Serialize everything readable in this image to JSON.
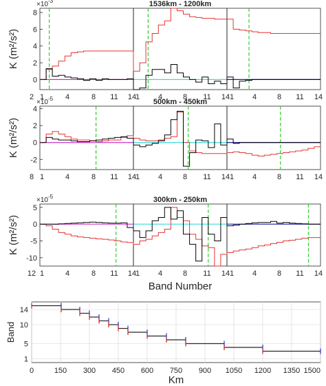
{
  "chart_data": [
    {
      "type": "line",
      "title": "1536km - 1200km",
      "ylabel": "K (m$^2$/s$^2$)",
      "exponent": "×10",
      "exponent_power": "-3",
      "ylim": [
        -1.2,
        8.5
      ],
      "yticks": [
        0,
        2,
        4,
        6,
        8
      ],
      "xtick_labels": [
        "2",
        "1",
        "4",
        "8",
        "11",
        "14",
        "1",
        "4",
        "8",
        "11",
        "14",
        "1",
        "4",
        "8",
        "11",
        "14"
      ],
      "panels": 3,
      "panel_band_max": 14,
      "vlines": [
        1.4,
        2.2,
        3.3
      ],
      "series": [
        {
          "name": "",
          "color": "#e53333",
          "values": [
            0,
            1.2,
            1.6,
            2.2,
            2.8,
            3.2,
            3.3,
            3.4,
            3.4,
            3.4,
            3.4,
            3.4,
            3.4,
            3.4,
            3.4,
            1.0,
            2.0,
            4.5,
            5.5,
            6.5,
            7.0,
            8.5,
            8.2,
            7.8,
            7.5,
            7.4,
            7.3,
            7.3,
            7.2,
            7.2,
            7.2,
            6.0,
            5.9,
            5.8,
            5.7,
            5.6,
            5.6,
            5.5,
            5.5,
            5.5,
            5.5,
            5.5,
            5.5,
            5.5,
            5.5
          ]
        },
        {
          "name": "",
          "color": "#000000",
          "values": [
            0,
            1.3,
            0.4,
            0.5,
            0.3,
            0.2,
            0.1,
            -0.1,
            0.1,
            -0.1,
            0.1,
            0.0,
            0.0,
            0.0,
            0.1,
            -1.2,
            -1.0,
            0.5,
            1.2,
            1.2,
            0.8,
            1.8,
            0.8,
            0.3,
            0.0,
            -0.3,
            0.3,
            -0.5,
            -0.2,
            -0.5,
            0.3,
            -1.0,
            -0.2,
            -0.1,
            0.0,
            0.0,
            0.0,
            0.0,
            0.0,
            0.0,
            0.0,
            0.0,
            0.0,
            0.0,
            0.0
          ]
        }
      ]
    },
    {
      "type": "line",
      "title": "500km - 450km",
      "ylabel": "K (m$^2$/s$^2$)",
      "exponent": "×10",
      "exponent_power": "-5",
      "ylim": [
        -3.2,
        4.3
      ],
      "yticks": [
        -2,
        0,
        2,
        4
      ],
      "xtick_labels": [
        "8",
        "1",
        "4",
        "8",
        "11",
        "14",
        "1",
        "4",
        "8",
        "11",
        "14",
        "1",
        "4",
        "8",
        "11",
        "14"
      ],
      "panels": 3,
      "panel_band_max": 14,
      "vlines": [
        8.4,
        8.2,
        8.0
      ],
      "series": [
        {
          "name": "",
          "color": "#e53333",
          "values": [
            0,
            1.0,
            1.3,
            1.0,
            0.7,
            0.4,
            0.3,
            0.3,
            0.2,
            0.1,
            0.2,
            0.3,
            0.3,
            0.6,
            0.8,
            0.5,
            0.3,
            0.2,
            0.2,
            0.3,
            0.5,
            0.7,
            3.6,
            0.0,
            -1.0,
            -1.2,
            -1.3,
            -1.3,
            -1.3,
            -1.3,
            -1.2,
            -1.1,
            -1.2,
            -1.3,
            -1.5,
            -1.6,
            -1.5,
            -1.4,
            -1.3,
            -1.2,
            -1.1,
            -1.0,
            -0.9,
            -0.7,
            -0.5
          ]
        },
        {
          "name": "",
          "color": "#000000",
          "values": [
            0,
            0.6,
            0.4,
            0.3,
            0.3,
            0.2,
            0.1,
            0.1,
            0.2,
            0.3,
            0.4,
            0.5,
            0.6,
            0.7,
            0.5,
            -0.3,
            -0.5,
            -0.3,
            -0.1,
            0.2,
            0.9,
            2.7,
            3.7,
            -2.8,
            -1.2,
            0.3,
            0.2,
            -0.6,
            2.2,
            -0.3,
            0.4,
            -0.1,
            0.0,
            0.0,
            0.0,
            0.0,
            0.0,
            0.0,
            0.0,
            0.0,
            0.0,
            0.0,
            0.0,
            0.0,
            0.0
          ]
        }
      ]
    },
    {
      "type": "line",
      "title": "300km - 250km",
      "ylabel": "K (m$^2$/s$^2$)",
      "exponent": "×10",
      "exponent_power": "-5",
      "ylim": [
        -12.5,
        6
      ],
      "yticks": [
        -10,
        -5,
        0,
        5
      ],
      "xtick_labels": [
        "12",
        "1",
        "4",
        "8",
        "11",
        "14",
        "1",
        "4",
        "8",
        "11",
        "14",
        "1",
        "4",
        "8",
        "11",
        "14"
      ],
      "panels": 3,
      "panel_band_max": 14,
      "vlines": [
        11.4,
        11.2,
        12.2
      ],
      "xlabel": "Band Number",
      "series": [
        {
          "name": "",
          "color": "#e53333",
          "values": [
            0,
            -0.5,
            -1.5,
            -2.5,
            -3.0,
            -3.5,
            -3.8,
            -4.0,
            -4.2,
            -4.4,
            -4.5,
            -4.7,
            -5.0,
            -5.3,
            -5.5,
            -6.0,
            -5.0,
            -4.5,
            -3.5,
            -2.5,
            -1.5,
            5.0,
            2.0,
            1.0,
            -3.0,
            -4.5,
            -6.5,
            -7.0,
            -12.5,
            -9.0,
            -8.5,
            -8.0,
            -7.7,
            -7.4,
            -7.0,
            -6.5,
            -6.2,
            -5.8,
            -5.4,
            -5.0,
            -4.8,
            -4.5,
            -4.2,
            -4.0,
            -4.0
          ]
        },
        {
          "name": "",
          "color": "#000000",
          "values": [
            0,
            0.0,
            0.0,
            0.1,
            0.2,
            0.3,
            0.4,
            0.5,
            0.6,
            0.5,
            0.4,
            0.3,
            0.3,
            0.4,
            -1.0,
            -2.0,
            -4.0,
            -2.0,
            1.0,
            2.0,
            5.0,
            1.5,
            4.0,
            -3.0,
            -6.0,
            -11.0,
            2.0,
            -3.0,
            -5.0,
            2.0,
            -0.5,
            -0.3,
            0.0,
            0.2,
            0.4,
            0.5,
            0.5,
            0.8,
            0.3,
            0.5,
            0.3,
            0.2,
            0.1,
            0.0,
            0.0
          ]
        }
      ]
    },
    {
      "type": "line",
      "xlabel": "Km",
      "ylabel": "Band",
      "xlim": [
        0,
        15000
      ],
      "ylim": [
        0,
        16
      ],
      "xtick_labels": [
        "0",
        "150",
        "300",
        "450",
        "600",
        "750",
        "900",
        "1050",
        "1200",
        "1350",
        "1500"
      ],
      "xtick_values": [
        0,
        1500,
        3000,
        4500,
        6000,
        7500,
        9000,
        10500,
        12000,
        13500,
        15000
      ],
      "xtick_positions": [
        0,
        150,
        300,
        450,
        600,
        750,
        900,
        1050,
        1200,
        1350,
        15000
      ],
      "yticks": [
        1,
        5,
        10,
        14
      ],
      "steps": [
        {
          "band": 15,
          "x0": 0,
          "x1": 1536
        },
        {
          "band": 14,
          "x0": 1536,
          "x1": 2500
        },
        {
          "band": 13,
          "x0": 2500,
          "x1": 3000
        },
        {
          "band": 12,
          "x0": 3000,
          "x1": 3500
        },
        {
          "band": 11,
          "x0": 3500,
          "x1": 4000
        },
        {
          "band": 10,
          "x0": 4000,
          "x1": 4500
        },
        {
          "band": 9,
          "x0": 4500,
          "x1": 5000
        },
        {
          "band": 8,
          "x0": 5000,
          "x1": 6000
        },
        {
          "band": 7,
          "x0": 6000,
          "x1": 7000
        },
        {
          "band": 6,
          "x0": 7000,
          "x1": 8000
        },
        {
          "band": 5,
          "x0": 8000,
          "x1": 10000
        },
        {
          "band": 4,
          "x0": 10000,
          "x1": 12000
        },
        {
          "band": 3,
          "x0": 12000,
          "x1": 15000
        }
      ]
    }
  ]
}
